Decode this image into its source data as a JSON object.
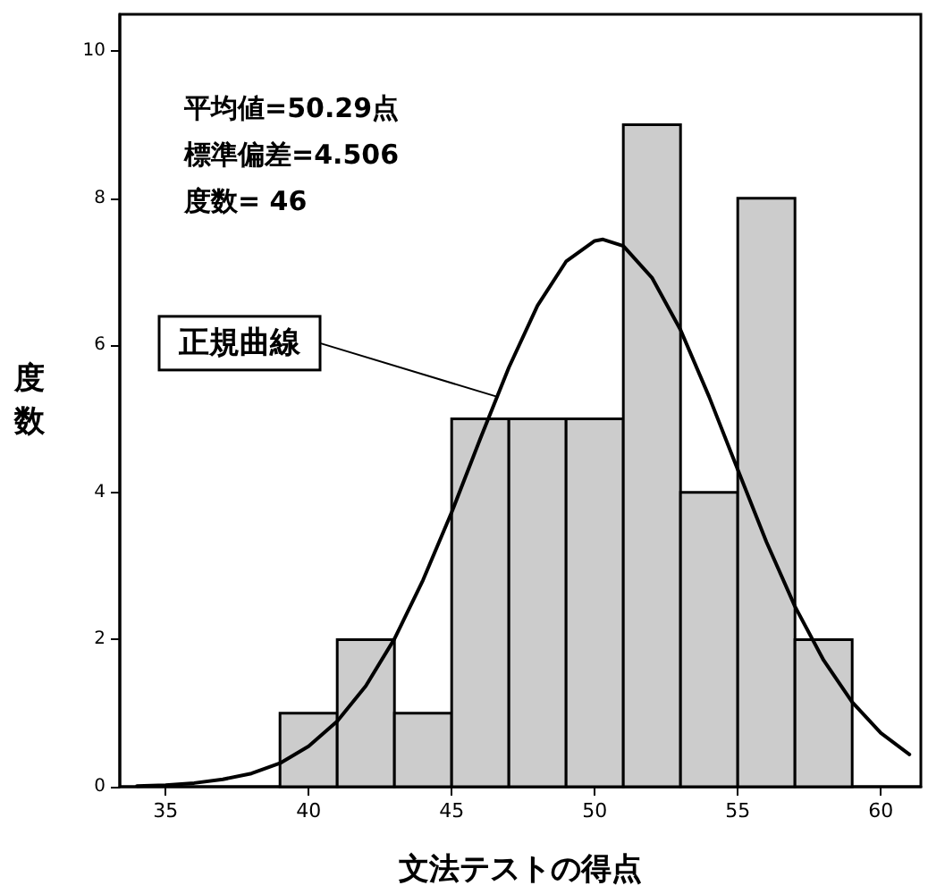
{
  "chart_data": {
    "type": "histogram",
    "xlabel": "文法テストの得点",
    "ylabel": "度数",
    "bins": [
      39,
      41,
      43,
      45,
      47,
      49,
      51,
      53,
      55,
      57,
      59
    ],
    "values": [
      1,
      2,
      1,
      5,
      5,
      5,
      9,
      4,
      8,
      2
    ],
    "color": "#cccccc",
    "xlim": [
      33.4,
      61.4
    ],
    "xticks": [
      35,
      40,
      45,
      50,
      55,
      60
    ],
    "ylim": [
      0,
      10.5
    ],
    "yticks": [
      0,
      2,
      4,
      6,
      8,
      10
    ],
    "grid": false,
    "series": [
      {
        "type": "line",
        "color": "#000000",
        "marker": "none",
        "line_style": "solid",
        "x": [
          34,
          35,
          36,
          37,
          38,
          39,
          40,
          41,
          42,
          43,
          44,
          45,
          46,
          47,
          48,
          49,
          50,
          50.29,
          51,
          52,
          53,
          54,
          55,
          56,
          57,
          58,
          59,
          60,
          61
        ],
        "values": [
          0.01,
          0.02,
          0.05,
          0.1,
          0.18,
          0.32,
          0.55,
          0.89,
          1.37,
          2.01,
          2.81,
          3.73,
          4.73,
          5.7,
          6.54,
          7.14,
          7.42,
          7.44,
          7.35,
          6.92,
          6.21,
          5.3,
          4.31,
          3.33,
          2.45,
          1.72,
          1.15,
          0.73,
          0.44
        ]
      }
    ],
    "annotations": [
      "平均値=50.29点",
      "標準偏差=4.506",
      "度数= 46",
      {
        "text": "正規曲線",
        "x": 46.6,
        "y": 5.3
      }
    ]
  }
}
